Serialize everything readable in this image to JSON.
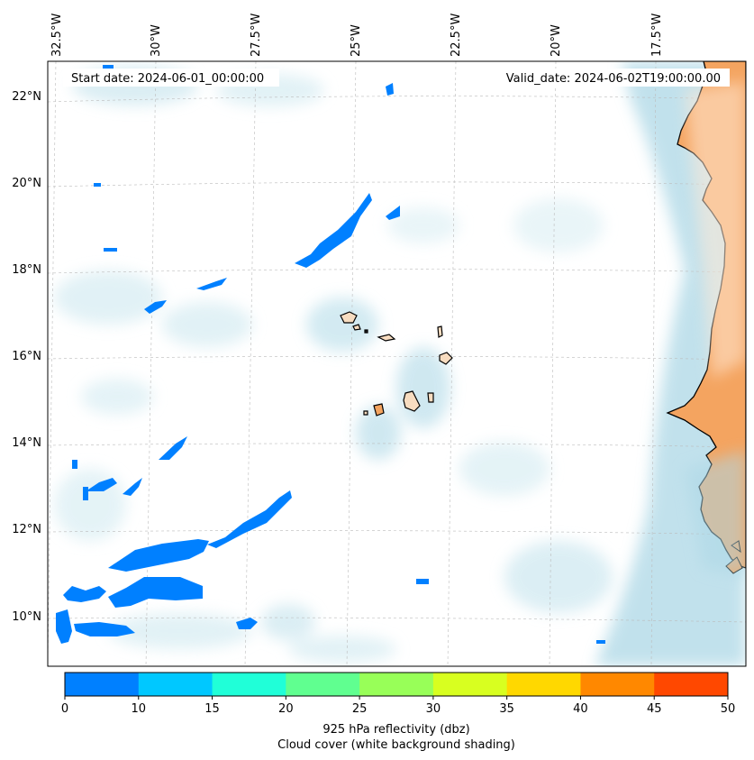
{
  "annotations": {
    "start_date": "Start date: 2024-06-01_00:00:00",
    "valid_date": "Valid_date: 2024-06-02T19:00:00.00"
  },
  "longitude_labels": [
    "32.5°W",
    "30°W",
    "27.5°W",
    "25°W",
    "22.5°W",
    "20°W",
    "17.5°W"
  ],
  "latitude_labels": [
    "22°N",
    "20°N",
    "18°N",
    "16°N",
    "14°N",
    "12°N",
    "10°N"
  ],
  "colorbar": {
    "ticks": [
      "0",
      "10",
      "15",
      "20",
      "25",
      "30",
      "35",
      "40",
      "45",
      "50"
    ],
    "colors": [
      "#0080ff",
      "#00c8ff",
      "#20ffd8",
      "#60ff90",
      "#98ff58",
      "#d8ff20",
      "#ffd800",
      "#ff8800",
      "#ff4800"
    ],
    "label_line1": "925 hPa reflectivity (dbz)",
    "label_line2": "Cloud cover (white background shading)"
  },
  "colors": {
    "land": "#f4a460",
    "cloud": "#add8e6",
    "reflectivity_low": "#0080ff",
    "coastline": "#000000"
  }
}
